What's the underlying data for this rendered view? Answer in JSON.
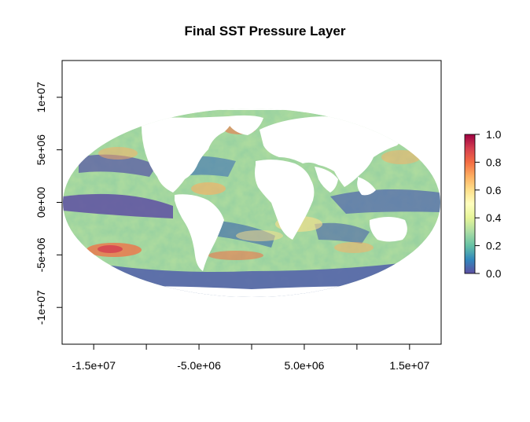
{
  "title": "Final SST Pressure Layer",
  "x_axis": {
    "ticks": [
      {
        "value": -15000000,
        "label": "-1.5e+07"
      },
      {
        "value": -10000000,
        "label": ""
      },
      {
        "value": -5000000,
        "label": "-5.0e+06"
      },
      {
        "value": 0,
        "label": ""
      },
      {
        "value": 5000000,
        "label": "5.0e+06"
      },
      {
        "value": 10000000,
        "label": ""
      },
      {
        "value": 15000000,
        "label": "1.5e+07"
      }
    ],
    "range": [
      -18000000,
      18000000
    ]
  },
  "y_axis": {
    "ticks": [
      {
        "value": 10000000,
        "label": "1e+07"
      },
      {
        "value": 5000000,
        "label": "5e+06"
      },
      {
        "value": 0,
        "label": "0e+00"
      },
      {
        "value": -5000000,
        "label": "-5e+06"
      },
      {
        "value": -10000000,
        "label": "-1e+07"
      }
    ],
    "range": [
      -13500000,
      13500000
    ]
  },
  "legend": {
    "min": 0.0,
    "max": 1.0,
    "ticks": [
      "0.0",
      "0.2",
      "0.4",
      "0.6",
      "0.8",
      "1.0"
    ],
    "colors": [
      "#5E4FA2",
      "#3288BD",
      "#66C2A5",
      "#ABDDA4",
      "#E6F598",
      "#FFFFBF",
      "#FEE08B",
      "#FDAE61",
      "#F46D43",
      "#D53E4F",
      "#9E0142"
    ]
  },
  "map": {
    "projection": "mollweide",
    "ocean_base_color": "#8CCB9F",
    "land_color": "#FFFFFF"
  }
}
